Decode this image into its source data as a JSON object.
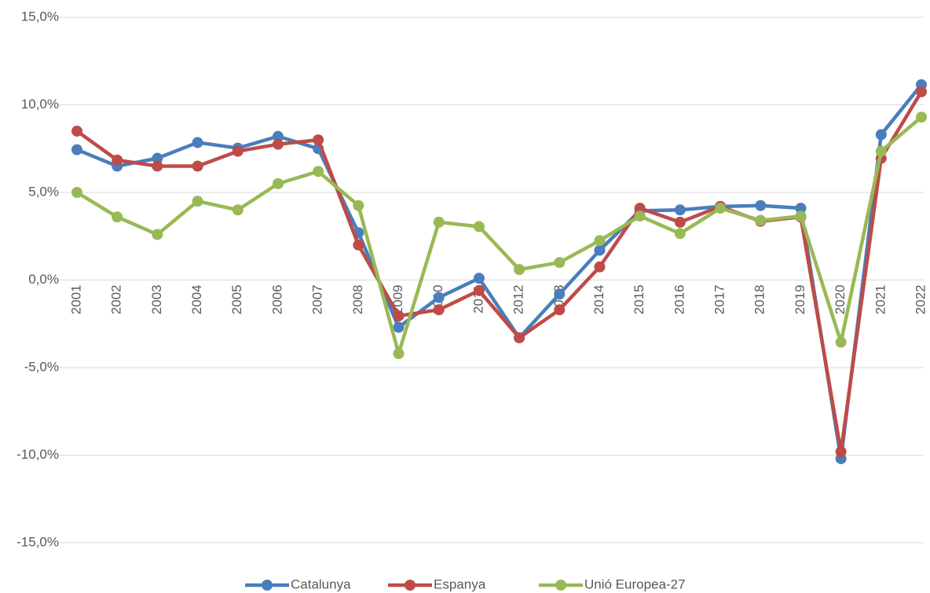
{
  "chart_data": {
    "type": "line",
    "categories": [
      "2001",
      "2002",
      "2003",
      "2004",
      "2005",
      "2006",
      "2007",
      "2008",
      "2009",
      "2010",
      "2011",
      "2012",
      "2013",
      "2014",
      "2015",
      "2016",
      "2017",
      "2018",
      "2019",
      "2020",
      "2021",
      "2022"
    ],
    "series": [
      {
        "name": "Catalunya",
        "color": "#4a7ebb",
        "values": [
          7.44,
          6.5,
          6.95,
          7.85,
          7.53,
          8.2,
          7.5,
          2.7,
          -2.7,
          -1.0,
          0.1,
          -3.3,
          -0.8,
          1.7,
          3.95,
          4.0,
          4.2,
          4.25,
          4.1,
          -10.2,
          8.3,
          11.15
        ]
      },
      {
        "name": "Espanya",
        "color": "#be4b48",
        "values": [
          8.5,
          6.85,
          6.5,
          6.5,
          7.35,
          7.75,
          8.0,
          2.0,
          -2.05,
          -1.7,
          -0.6,
          -3.3,
          -1.7,
          0.75,
          4.1,
          3.3,
          4.2,
          3.35,
          3.6,
          -9.8,
          6.95,
          10.75
        ]
      },
      {
        "name": "Unió Europea-27",
        "color": "#98b954",
        "values": [
          5.0,
          3.6,
          2.6,
          4.5,
          4.0,
          5.5,
          6.2,
          4.25,
          -4.2,
          3.3,
          3.05,
          0.6,
          1.0,
          2.25,
          3.65,
          2.65,
          4.1,
          3.4,
          3.65,
          -3.55,
          7.35,
          9.3
        ]
      }
    ],
    "ylim": [
      -15,
      15
    ],
    "yticks": [
      {
        "value": -15,
        "label": "-15,0%"
      },
      {
        "value": -10,
        "label": "-10,0%"
      },
      {
        "value": -5,
        "label": "-5,0%"
      },
      {
        "value": 0,
        "label": "0,0%"
      },
      {
        "value": 5,
        "label": "5,0%"
      },
      {
        "value": 10,
        "label": "10,0%"
      },
      {
        "value": 15,
        "label": "15,0%"
      }
    ],
    "grid": true,
    "legend": "bottom"
  }
}
